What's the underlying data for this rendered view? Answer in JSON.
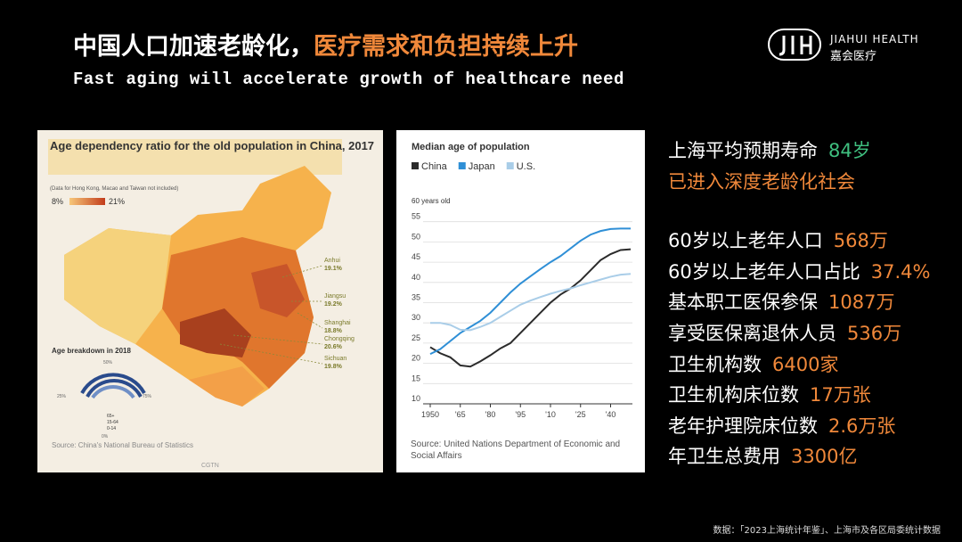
{
  "header": {
    "title_main": "中国人口加速老龄化，",
    "title_accent": "医疗需求和负担持续上升",
    "subtitle": "Fast aging will accelerate growth of healthcare need",
    "logo_en": "JIAHUI HEALTH",
    "logo_cn": "嘉会医疗"
  },
  "map_panel": {
    "title": "Age dependency ratio for the old population in China, 2017",
    "note": "(Data for Hong Kong, Macao and Taiwan not included)",
    "legend_min": "8%",
    "legend_max": "21%",
    "provinces": [
      {
        "name": "Anhui",
        "value": "19.1%"
      },
      {
        "name": "Jiangsu",
        "value": "19.2%"
      },
      {
        "name": "Shanghai",
        "value": "18.8%"
      },
      {
        "name": "Chongqing",
        "value": "20.6%"
      },
      {
        "name": "Sichuan",
        "value": "19.8%"
      }
    ],
    "breakdown_title": "Age breakdown in 2018",
    "breakdown_ticks": [
      "25%",
      "50%",
      "75%",
      "0%"
    ],
    "breakdown_groups": [
      "65+",
      "15-64",
      "0-14"
    ],
    "source": "Source: China's National Bureau of Statistics",
    "credit": "CGTN"
  },
  "chart_data": {
    "type": "line",
    "title": "Median age of population",
    "y_label": "60 years old",
    "source": "Source: United Nations Department of Economic and Social Affairs",
    "x": [
      1950,
      1955,
      1960,
      1965,
      1970,
      1975,
      1980,
      1985,
      1990,
      1995,
      2000,
      2005,
      2010,
      2015,
      2020,
      2025,
      2030,
      2035,
      2040,
      2045,
      2050
    ],
    "series": [
      {
        "name": "China",
        "color": "#2b2b2b",
        "values": [
          24,
          22.5,
          21.5,
          19.5,
          19.2,
          20.5,
          22,
          23.7,
          25,
          27.5,
          30,
          32.5,
          35,
          37,
          38.5,
          40.5,
          43,
          45.5,
          47,
          48,
          48.2
        ]
      },
      {
        "name": "Japan",
        "color": "#2f8fd6",
        "values": [
          22.3,
          23.5,
          25.5,
          27.5,
          29,
          30.5,
          32.5,
          35,
          37.5,
          39.7,
          41.5,
          43.3,
          45,
          46.5,
          48.4,
          50.3,
          51.8,
          52.7,
          53.2,
          53.3,
          53.3
        ]
      },
      {
        "name": "U.S.",
        "color": "#a9cde8",
        "values": [
          30,
          30,
          29.5,
          28.3,
          28.2,
          29,
          30,
          31.5,
          33,
          34.5,
          35.5,
          36.4,
          37.2,
          37.9,
          38.5,
          39.3,
          40,
          40.7,
          41.4,
          41.9,
          42.1
        ]
      }
    ],
    "xlim": [
      1950,
      2050
    ],
    "xticks": [
      1950,
      {
        "value": 1965,
        "label": "'65"
      },
      {
        "value": 1980,
        "label": "'80"
      },
      {
        "value": 1995,
        "label": "'95"
      },
      {
        "value": 2010,
        "label": "'10"
      },
      {
        "value": 2025,
        "label": "'25"
      },
      {
        "value": 2040,
        "label": "'40"
      }
    ],
    "ylim": [
      10,
      60
    ],
    "yticks": [
      10,
      15,
      20,
      25,
      30,
      35,
      40,
      45,
      50,
      55
    ],
    "grid": true
  },
  "stats_panel": {
    "highlight": {
      "label": "上海平均预期寿命",
      "value": "84岁"
    },
    "status": "已进入深度老龄化社会",
    "stats": [
      {
        "label": "60岁以上老年人口",
        "value": "568万"
      },
      {
        "label": "60岁以上老年人口占比",
        "value": "37.4%"
      },
      {
        "label": "基本职工医保参保",
        "value": "1087万"
      },
      {
        "label": "享受医保离退休人员",
        "value": "536万"
      },
      {
        "label": "卫生机构数",
        "value": "6400家"
      },
      {
        "label": "卫生机构床位数",
        "value": "17万张"
      },
      {
        "label": "老年护理院床位数",
        "value": "2.6万张"
      },
      {
        "label": "年卫生总费用",
        "value": "3300亿"
      }
    ]
  },
  "footer": {
    "source": "数据：「2023上海统计年鉴」、上海市及各区局委统计数据"
  }
}
